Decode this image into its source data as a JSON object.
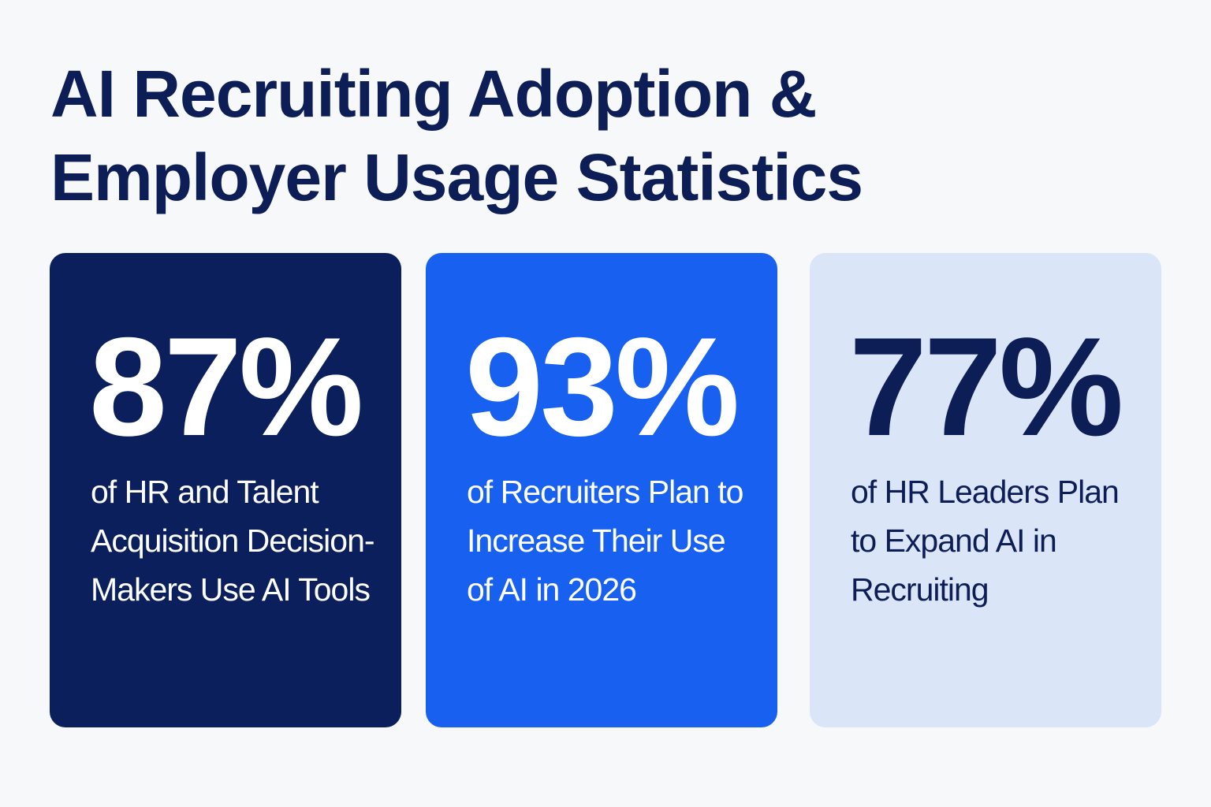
{
  "title": {
    "line1": "AI Recruiting Adoption &",
    "line2": "Employer Usage Statistics"
  },
  "cards": [
    {
      "value": "87%",
      "description": "of HR and Talent Acquisition Decision-Makers Use AI Tools",
      "background": "#0a1f5c",
      "text_color": "#ffffff"
    },
    {
      "value": "93%",
      "description": "of Recruiters Plan to Increase Their Use of AI in 2026",
      "background": "#1760f0",
      "text_color": "#ffffff"
    },
    {
      "value": "77%",
      "description": "of HR Leaders Plan to Expand AI in Recruiting",
      "background": "#dbe5f8",
      "text_color": "#0d1e56"
    }
  ]
}
